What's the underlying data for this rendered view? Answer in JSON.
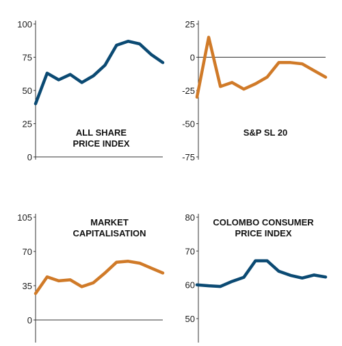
{
  "chart_data": [
    {
      "type": "line",
      "title": [
        "ALL SHARE",
        "PRICE INDEX"
      ],
      "color": "#0b4a73",
      "yticks": [
        "100",
        "75",
        "50",
        "25",
        "0"
      ],
      "ylim": [
        0,
        100
      ],
      "values": [
        40,
        63,
        58,
        62,
        56,
        61,
        69,
        84,
        87,
        85,
        77,
        71
      ]
    },
    {
      "type": "line",
      "title": [
        "S&P SL 20"
      ],
      "color": "#d07a28",
      "yticks": [
        "25",
        "0",
        "-25",
        "-50",
        "-75"
      ],
      "ylim": [
        -75,
        25
      ],
      "zero_line": true,
      "values": [
        -30,
        15,
        -22,
        -19,
        -24,
        -20,
        -15,
        -4,
        -4,
        -5,
        -10,
        -15
      ]
    },
    {
      "type": "line",
      "title": [
        "MARKET",
        "CAPITALISATION"
      ],
      "color": "#d07a28",
      "yticks": [
        "105",
        "70",
        "35",
        "0"
      ],
      "ylim": [
        0,
        105
      ],
      "values": [
        27,
        44,
        40,
        41,
        34,
        38,
        48,
        59,
        60,
        58,
        53,
        48
      ]
    },
    {
      "type": "line",
      "title": [
        "COLOMBO CONSUMER",
        "PRICE INDEX"
      ],
      "color": "#0b4a73",
      "yticks": [
        "80",
        "70",
        "60",
        "50"
      ],
      "ylim": [
        50,
        80
      ],
      "values": [
        60,
        59.7,
        59.5,
        61,
        62.2,
        67.1,
        67.1,
        64,
        62.8,
        62,
        62.9,
        62.3
      ]
    }
  ]
}
